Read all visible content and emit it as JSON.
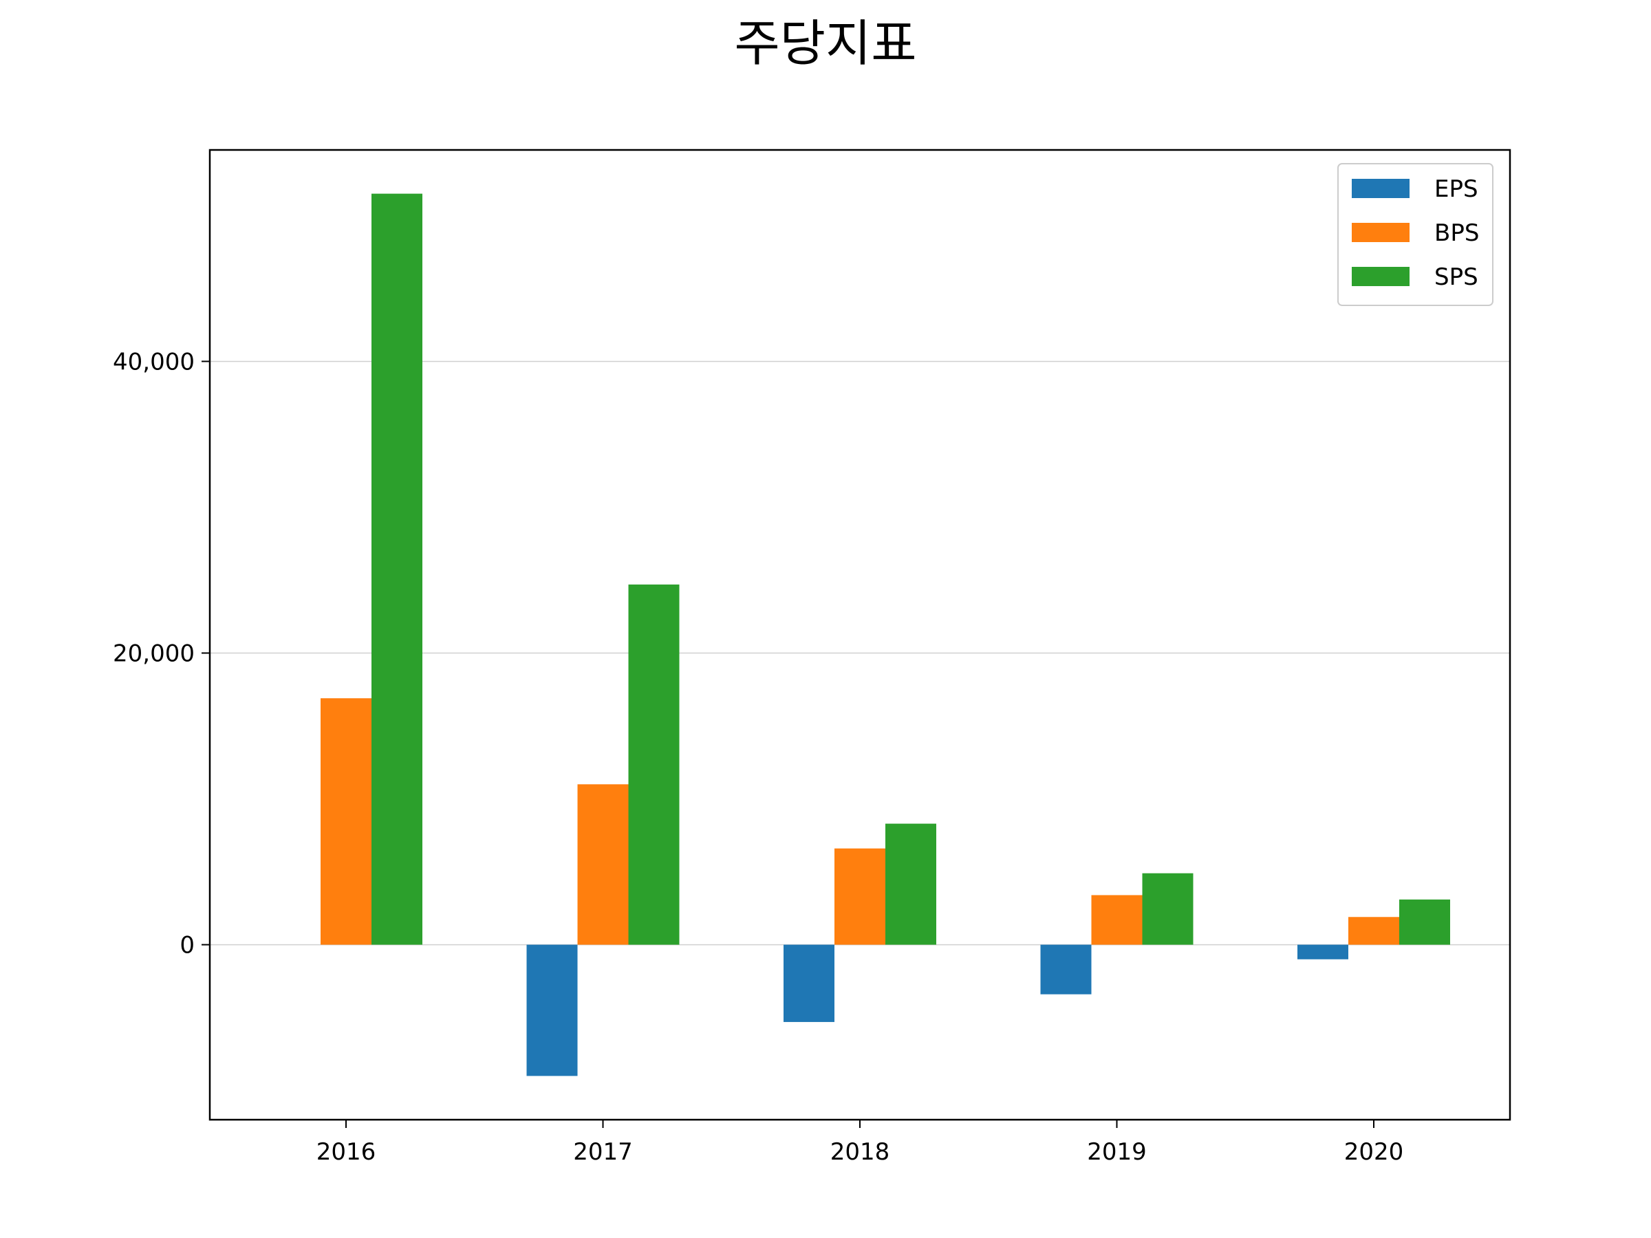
{
  "chart_data": {
    "type": "bar",
    "title": "주당지표",
    "xlabel": "",
    "ylabel": "",
    "categories": [
      "2016",
      "2017",
      "2018",
      "2019",
      "2020"
    ],
    "series": [
      {
        "name": "EPS",
        "color": "#1f77b4",
        "values": [
          0,
          -9000,
          -5300,
          -3400,
          -1000
        ]
      },
      {
        "name": "BPS",
        "color": "#ff7f0e",
        "values": [
          16900,
          11000,
          6600,
          3400,
          1900
        ]
      },
      {
        "name": "SPS",
        "color": "#2ca02c",
        "values": [
          51500,
          24700,
          8300,
          4900,
          3100
        ]
      }
    ],
    "ylim": [
      -12000,
      54500
    ],
    "yticks": [
      0,
      20000,
      40000
    ],
    "ytick_labels": [
      "0",
      "20,000",
      "40,000"
    ],
    "grid": "y",
    "legend": "top-right"
  }
}
